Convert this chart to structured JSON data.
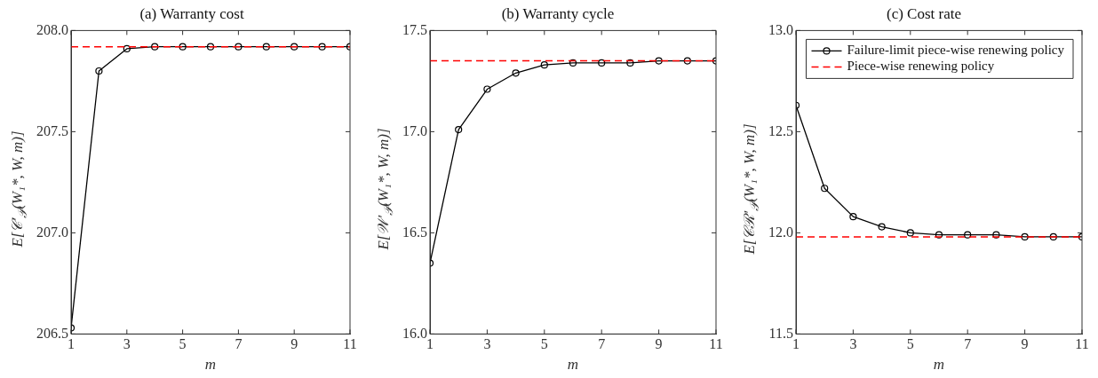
{
  "chart_data": [
    {
      "type": "line",
      "title": "(a) Warranty cost",
      "xlabel": "m",
      "ylabel": "E[𝒞′$_{𝒫}$(W₁*, W, m)]",
      "x": [
        1,
        2,
        3,
        4,
        5,
        6,
        7,
        8,
        9,
        10,
        11
      ],
      "xlim": [
        1,
        11
      ],
      "xticks": [
        1,
        3,
        5,
        7,
        9,
        11
      ],
      "ylim": [
        206.5,
        208.0
      ],
      "yticks": [
        {
          "value": 206.5,
          "label": "206.5"
        },
        {
          "value": 207,
          "label": "207.0"
        },
        {
          "value": 207.5,
          "label": "207.5"
        },
        {
          "value": 208,
          "label": "208.0"
        }
      ],
      "grid": false,
      "legend": false,
      "marker": "circle",
      "series": [
        {
          "color": "#000000",
          "values": [
            206.53,
            207.8,
            207.91,
            207.92,
            207.92,
            207.92,
            207.92,
            207.92,
            207.92,
            207.92,
            207.92
          ]
        }
      ],
      "ref_lines": [
        {
          "axis": "y",
          "value": 207.92,
          "color": "#ff0000",
          "line_style": "dashed"
        }
      ]
    },
    {
      "type": "line",
      "title": "(b) Warranty cycle",
      "xlabel": "m",
      "ylabel": "E[𝒲′$_{𝒫}$(W₁*, W, m)]",
      "x": [
        1,
        2,
        3,
        4,
        5,
        6,
        7,
        8,
        9,
        10,
        11
      ],
      "xlim": [
        1,
        11
      ],
      "xticks": [
        1,
        3,
        5,
        7,
        9,
        11
      ],
      "ylim": [
        16.0,
        17.5
      ],
      "yticks": [
        {
          "value": 16,
          "label": "16.0"
        },
        {
          "value": 16.5,
          "label": "16.5"
        },
        {
          "value": 17,
          "label": "17.0"
        },
        {
          "value": 17.5,
          "label": "17.5"
        }
      ],
      "grid": false,
      "legend": false,
      "marker": "circle",
      "series": [
        {
          "color": "#000000",
          "values": [
            16.35,
            17.01,
            17.21,
            17.29,
            17.33,
            17.34,
            17.34,
            17.34,
            17.35,
            17.35,
            17.35
          ]
        }
      ],
      "ref_lines": [
        {
          "axis": "y",
          "value": 17.35,
          "color": "#ff0000",
          "line_style": "dashed"
        }
      ]
    },
    {
      "type": "line",
      "title": "(c) Cost rate",
      "xlabel": "m",
      "ylabel": "E[𝒞ℛ′$_{𝒫}$(W₁*, W, m)]",
      "x": [
        1,
        2,
        3,
        4,
        5,
        6,
        7,
        8,
        9,
        10,
        11
      ],
      "xlim": [
        1,
        11
      ],
      "xticks": [
        1,
        3,
        5,
        7,
        9,
        11
      ],
      "ylim": [
        11.5,
        13.0
      ],
      "yticks": [
        {
          "value": 11.5,
          "label": "11.5"
        },
        {
          "value": 12,
          "label": "12.0"
        },
        {
          "value": 12.5,
          "label": "12.5"
        },
        {
          "value": 13,
          "label": "13.0"
        }
      ],
      "grid": false,
      "legend": "top right",
      "marker": "circle",
      "series": [
        {
          "name": "Failure-limit piece-wise renewing policy",
          "color": "#000000",
          "values": [
            12.63,
            12.22,
            12.08,
            12.03,
            12.0,
            11.99,
            11.99,
            11.99,
            11.98,
            11.98,
            11.98
          ]
        }
      ],
      "ref_lines": [
        {
          "axis": "y",
          "value": 11.98,
          "label": "Piece-wise renewing policy",
          "color": "#ff0000",
          "line_style": "dashed"
        }
      ]
    }
  ]
}
